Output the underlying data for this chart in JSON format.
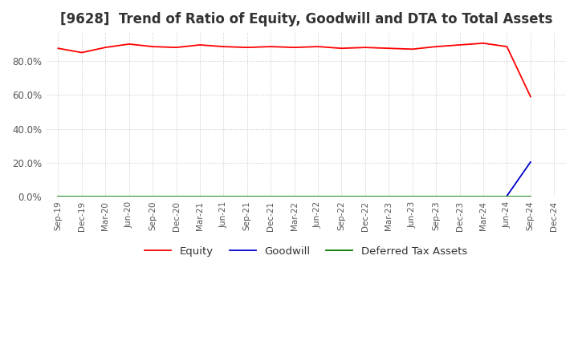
{
  "title": "[9628]  Trend of Ratio of Equity, Goodwill and DTA to Total Assets",
  "x_labels": [
    "Sep-19",
    "Dec-19",
    "Mar-20",
    "Jun-20",
    "Sep-20",
    "Dec-20",
    "Mar-21",
    "Jun-21",
    "Sep-21",
    "Dec-21",
    "Mar-22",
    "Jun-22",
    "Sep-22",
    "Dec-22",
    "Mar-23",
    "Jun-23",
    "Sep-23",
    "Dec-23",
    "Mar-24",
    "Jun-24",
    "Sep-24",
    "Dec-24"
  ],
  "equity": [
    87.5,
    85.0,
    88.0,
    90.0,
    88.5,
    88.0,
    89.5,
    88.5,
    88.0,
    88.5,
    88.0,
    88.5,
    87.5,
    88.0,
    87.5,
    87.0,
    88.5,
    89.5,
    90.5,
    88.5,
    59.0,
    null
  ],
  "goodwill": [
    null,
    null,
    null,
    null,
    null,
    null,
    null,
    null,
    null,
    null,
    null,
    null,
    null,
    null,
    null,
    null,
    null,
    null,
    null,
    0.5,
    20.5,
    null
  ],
  "dta": [
    0.3,
    0.3,
    0.3,
    0.3,
    0.3,
    0.3,
    0.3,
    0.3,
    0.3,
    0.3,
    0.3,
    0.3,
    0.3,
    0.3,
    0.3,
    0.3,
    0.3,
    0.3,
    0.3,
    0.3,
    0.3,
    null
  ],
  "equity_color": "#ff0000",
  "goodwill_color": "#0000cc",
  "dta_color": "#007700",
  "ylim": [
    0,
    97
  ],
  "ytick_vals": [
    0,
    20,
    40,
    60,
    80
  ],
  "ytick_labels": [
    "0.0%",
    "20.0%",
    "40.0%",
    "60.0%",
    "80.0%"
  ],
  "background_color": "#ffffff",
  "grid_color": "#bbbbbb",
  "title_fontsize": 12,
  "legend_labels": [
    "Equity",
    "Goodwill",
    "Deferred Tax Assets"
  ]
}
